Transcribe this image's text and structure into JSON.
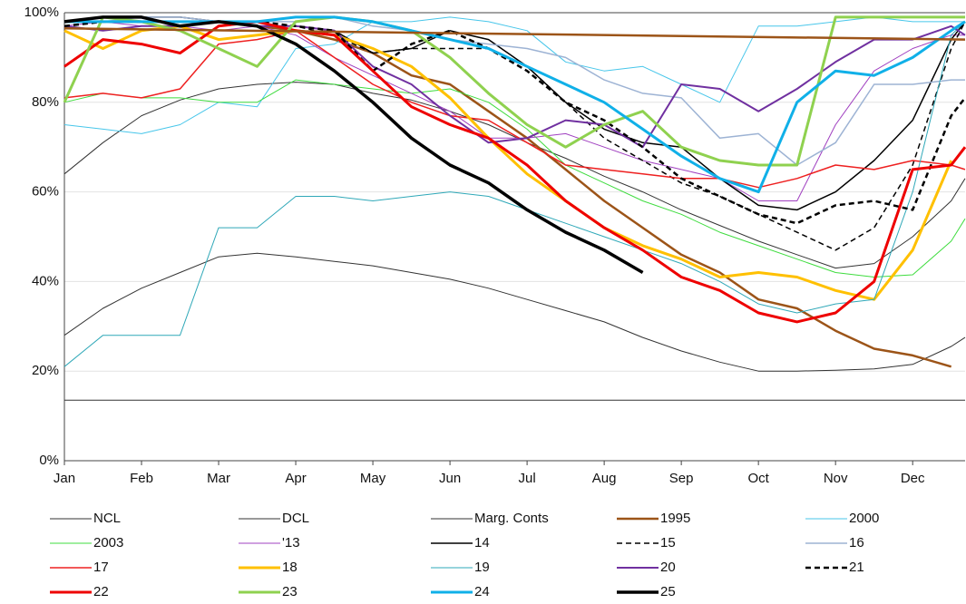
{
  "chart_data": {
    "type": "line",
    "x": [
      0,
      0.5,
      1,
      1.5,
      2,
      2.5,
      3,
      3.5,
      4,
      4.5,
      5,
      5.5,
      6,
      6.5,
      7,
      7.5,
      8,
      8.5,
      9,
      9.5,
      10,
      10.5,
      11,
      11.5,
      11.68
    ],
    "xlim": [
      0,
      11.68
    ],
    "xticks": [
      {
        "value": 0,
        "label": "Jan"
      },
      {
        "value": 1,
        "label": "Feb"
      },
      {
        "value": 2,
        "label": "Mar"
      },
      {
        "value": 3,
        "label": "Apr"
      },
      {
        "value": 4,
        "label": "May"
      },
      {
        "value": 5,
        "label": "Jun"
      },
      {
        "value": 6,
        "label": "Jul"
      },
      {
        "value": 7,
        "label": "Aug"
      },
      {
        "value": 8,
        "label": "Sep"
      },
      {
        "value": 9,
        "label": "Oct"
      },
      {
        "value": 10,
        "label": "Nov"
      },
      {
        "value": 11,
        "label": "Dec"
      }
    ],
    "ylim": [
      0,
      100
    ],
    "yticks": [
      {
        "value": 0,
        "label": "0%"
      },
      {
        "value": 20,
        "label": "20%"
      },
      {
        "value": 40,
        "label": "40%"
      },
      {
        "value": 60,
        "label": "60%"
      },
      {
        "value": 80,
        "label": "80%"
      },
      {
        "value": 100,
        "label": "100%"
      }
    ],
    "grid": true,
    "series": [
      {
        "name": "NCL",
        "color": "#333333",
        "line_width": 1,
        "values": [
          64,
          71,
          77,
          80.5,
          83,
          84,
          84.5,
          84,
          82,
          80.5,
          78,
          75,
          71,
          67.5,
          63.5,
          60,
          56,
          52.5,
          49,
          46,
          43,
          44,
          50,
          58,
          63
        ]
      },
      {
        "name": "DCL",
        "color": "#333333",
        "line_width": 1,
        "values": [
          28,
          34,
          38.5,
          42,
          45.5,
          46.3,
          45.5,
          44.5,
          43.5,
          42,
          40.5,
          38.5,
          36,
          33.5,
          31,
          27.5,
          24.5,
          22,
          20,
          20,
          20.2,
          20.5,
          21.5,
          25.5,
          27.5
        ]
      },
      {
        "name": "Marg. Conts",
        "color": "#333333",
        "line_width": 1,
        "values": [
          13.5,
          13.5,
          13.5,
          13.5,
          13.5,
          13.5,
          13.5,
          13.5,
          13.5,
          13.5,
          13.5,
          13.5,
          13.5,
          13.5,
          13.5,
          13.5,
          13.5,
          13.5,
          13.5,
          13.5,
          13.5,
          13.5,
          13.5,
          13.5,
          13.5
        ]
      },
      {
        "name": "1995",
        "color": "#9c5418",
        "line_width": 2.5,
        "values": [
          98,
          98,
          98,
          98,
          98,
          97,
          96,
          94,
          91,
          86,
          84,
          78,
          72,
          65,
          58,
          52,
          46,
          42,
          36,
          34,
          29,
          25,
          23.5,
          21,
          null
        ]
      },
      {
        "name": "2000",
        "color": "#47c6ea",
        "line_width": 1,
        "values": [
          75,
          74,
          73,
          75,
          80,
          79,
          92,
          93,
          98,
          98,
          99,
          98,
          96,
          89,
          87,
          88,
          84,
          80,
          97,
          97,
          98,
          99,
          98,
          98,
          98
        ]
      },
      {
        "name": "2003",
        "color": "#3fdc3f",
        "line_width": 1,
        "values": [
          80,
          82,
          81,
          81,
          80,
          80,
          85,
          84,
          83,
          82,
          83,
          80,
          74,
          66,
          62,
          58,
          55,
          51,
          48,
          45,
          42,
          41,
          41.5,
          49,
          54
        ]
      },
      {
        "name": "'13",
        "color": "#a040c0",
        "line_width": 1,
        "values": [
          97,
          98,
          97,
          97,
          96,
          97,
          95,
          90,
          86,
          82,
          78,
          72,
          72,
          73,
          70,
          67,
          65,
          63,
          58,
          58,
          75,
          87,
          92,
          95,
          95
        ]
      },
      {
        "name": "14",
        "color": "#000000",
        "line_width": 1.5,
        "values": [
          98,
          99,
          99,
          99,
          98,
          97,
          97,
          96,
          91,
          92,
          96,
          94,
          88,
          80,
          74,
          71,
          70,
          63,
          57,
          56,
          60,
          67,
          76,
          94,
          98
        ]
      },
      {
        "name": "15",
        "color": "#000000",
        "line_width": 1.5,
        "dashed": true,
        "values": [
          98,
          98,
          98,
          98,
          98,
          97,
          97,
          95,
          91,
          92,
          92,
          92,
          88,
          80,
          72,
          67,
          62,
          59,
          55,
          51,
          47,
          52,
          66,
          92,
          98
        ]
      },
      {
        "name": "16",
        "color": "#9db3d4",
        "line_width": 1.5,
        "values": [
          98,
          98,
          99,
          99,
          98,
          98,
          98,
          99,
          97,
          96,
          94,
          93,
          92,
          90,
          85,
          82,
          81,
          72,
          73,
          66,
          71,
          84,
          84,
          85,
          85
        ]
      },
      {
        "name": "17",
        "color": "#ee2020",
        "line_width": 1.5,
        "values": [
          81,
          82,
          81,
          83,
          93,
          94,
          96,
          90,
          84,
          80,
          77,
          76,
          71,
          66,
          65,
          64,
          63,
          63,
          61,
          63,
          66,
          65,
          67,
          66,
          65
        ]
      },
      {
        "name": "18",
        "color": "#ffc000",
        "line_width": 3,
        "values": [
          96,
          92,
          96,
          97,
          94,
          95,
          96,
          95,
          92,
          88,
          81,
          72,
          64,
          58,
          52,
          48,
          45,
          41,
          42,
          41,
          38,
          36,
          47,
          67,
          null
        ]
      },
      {
        "name": "19",
        "color": "#2fa8b8",
        "line_width": 1,
        "values": [
          21,
          28,
          28,
          28,
          52,
          52,
          59,
          59,
          58,
          59,
          60,
          59,
          56,
          53,
          50,
          47,
          44,
          40,
          35,
          33,
          35,
          36,
          60,
          95,
          98
        ]
      },
      {
        "name": "20",
        "color": "#7030a0",
        "line_width": 2,
        "values": [
          97,
          96,
          97,
          97,
          98,
          97,
          97,
          96,
          88,
          84,
          77,
          71,
          72,
          76,
          75,
          70,
          84,
          83,
          78,
          83,
          89,
          94,
          94,
          97,
          95
        ]
      },
      {
        "name": "21",
        "color": "#000000",
        "line_width": 2.5,
        "dashed": true,
        "values": [
          97,
          98,
          98,
          98,
          98,
          98,
          97,
          96,
          87,
          93,
          96,
          92,
          87,
          80,
          76,
          70,
          63,
          59,
          55,
          53,
          57,
          58,
          56,
          77,
          81
        ]
      },
      {
        "name": "22",
        "color": "#ee0000",
        "line_width": 3,
        "values": [
          88,
          94,
          93,
          91,
          97,
          98,
          96,
          95,
          87,
          79,
          75,
          72,
          66,
          58,
          52,
          47,
          41,
          38,
          33,
          31,
          33,
          40,
          65,
          66,
          70
        ]
      },
      {
        "name": "23",
        "color": "#8fd14f",
        "line_width": 3,
        "values": [
          80,
          99,
          98,
          96,
          92,
          88,
          98,
          99,
          98,
          96,
          90,
          82,
          75,
          70,
          75,
          78,
          70,
          67,
          66,
          66,
          99,
          99,
          99,
          99,
          99
        ]
      },
      {
        "name": "24",
        "color": "#10b0e8",
        "line_width": 3,
        "values": [
          98,
          98,
          98,
          98,
          98,
          98,
          99,
          99,
          98,
          96,
          94,
          92,
          88,
          84,
          80,
          74,
          68,
          63,
          60,
          80,
          87,
          86,
          90,
          96,
          98
        ]
      },
      {
        "name": "25",
        "color": "#000000",
        "line_width": 3.5,
        "values": [
          98,
          99,
          99,
          97,
          98,
          97,
          93,
          87,
          80,
          72,
          66,
          62,
          56,
          51,
          47,
          42,
          null,
          null,
          null,
          null,
          null,
          null,
          null,
          null,
          null
        ]
      },
      {
        "color": "#9c5418",
        "line_width": 2.5,
        "x": [
          0,
          11.68
        ],
        "values": [
          96.5,
          94
        ]
      }
    ]
  }
}
